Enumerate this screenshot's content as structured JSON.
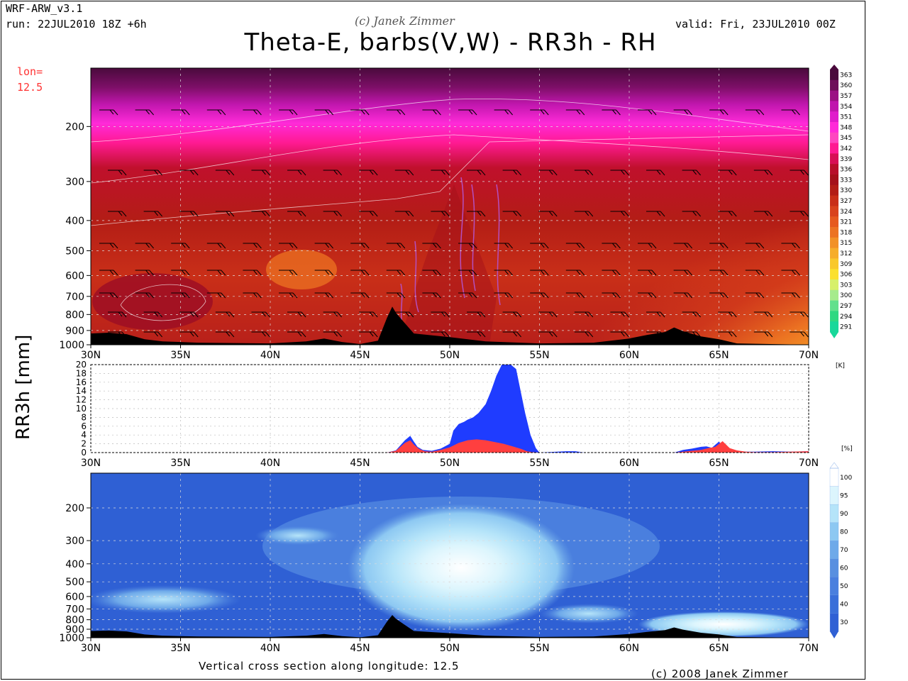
{
  "header": {
    "model": "WRF-ARW_v3.1",
    "run": "run: 22JUL2010 18Z +6h",
    "copyright_top": "(c) Janek Zimmer",
    "valid": "valid: Fri, 23JUL2010 00Z",
    "title": "Theta-E, barbs(V,W) - RR3h - RH",
    "lon_label": "lon=",
    "lon_value": "12.5"
  },
  "footer": {
    "caption": "Vertical cross section along longitude: 12.5",
    "copyright": "(c) 2008 Janek Zimmer"
  },
  "colors": {
    "rain_blue": "#1f3cff",
    "rain_red": "#ff3f3f",
    "rh_background": "#2f72d9",
    "terrain": "#000000"
  },
  "chart_data": [
    {
      "type": "heatmap",
      "name": "Theta-E",
      "x_ticks": [
        "30N",
        "35N",
        "40N",
        "45N",
        "50N",
        "55N",
        "60N",
        "65N",
        "70N"
      ],
      "y_ticks": [
        "200",
        "300",
        "400",
        "500",
        "600",
        "700",
        "800",
        "900",
        "1000"
      ],
      "xlim": [
        30,
        70
      ],
      "ylim": [
        1000,
        130
      ],
      "y_scale": "log",
      "grid": true,
      "colorbar": {
        "values": [
          "363",
          "360",
          "357",
          "354",
          "351",
          "348",
          "345",
          "342",
          "339",
          "336",
          "333",
          "330",
          "327",
          "324",
          "321",
          "318",
          "315",
          "312",
          "309",
          "306",
          "303",
          "300",
          "297",
          "294",
          "291"
        ],
        "colors": [
          "#4a0a3c",
          "#6e0e5a",
          "#9b1284",
          "#c016ad",
          "#e01ccb",
          "#ff2ad8",
          "#ff46c0",
          "#ff1a92",
          "#d80f55",
          "#b80f2a",
          "#a5101a",
          "#b31d16",
          "#c92f18",
          "#d9431c",
          "#e65a1e",
          "#ec7322",
          "#f29126",
          "#f6ad2a",
          "#f9c82c",
          "#fbe02f",
          "#d7f06a",
          "#a6eb8c",
          "#62e08c",
          "#2fd881",
          "#18d89a"
        ]
      },
      "unit": "[K]"
    },
    {
      "type": "area",
      "name": "RR3h",
      "ylabel": "RR3h [mm]",
      "x_ticks": [
        "30N",
        "35N",
        "40N",
        "45N",
        "50N",
        "55N",
        "60N",
        "65N",
        "70N"
      ],
      "y_ticks": [
        "20",
        "18",
        "16",
        "14",
        "12",
        "10",
        "8",
        "6",
        "4",
        "2",
        "0"
      ],
      "xlim": [
        30,
        70
      ],
      "ylim": [
        0,
        20
      ],
      "grid": true,
      "series": [
        {
          "x": [
            46.5,
            47.0,
            47.5,
            47.8,
            48.0,
            48.2,
            48.5,
            49.0,
            49.5,
            50.0,
            50.2,
            50.5,
            50.8,
            51.0,
            51.3,
            51.6,
            52.0,
            52.3,
            52.6,
            52.9,
            53.1,
            53.4,
            53.7,
            54.0,
            54.2,
            54.5,
            54.8,
            55.0,
            56.5,
            57.0,
            57.5,
            62.5,
            63.0,
            63.5,
            64.0,
            64.3,
            64.6,
            65.0,
            65.3,
            65.6,
            66.0,
            66.5,
            67.0,
            68.0,
            69.0,
            70.0
          ],
          "values": [
            0,
            0.5,
            2.8,
            3.8,
            2.5,
            1.3,
            0.6,
            0.4,
            0.9,
            2.0,
            5.0,
            6.5,
            7.0,
            7.5,
            8.0,
            9.0,
            11.0,
            14.0,
            17.5,
            20,
            20,
            20,
            19.0,
            13.0,
            9.0,
            4.0,
            1.0,
            0,
            0.3,
            0.3,
            0,
            0,
            0.6,
            0.9,
            1.3,
            1.4,
            1.1,
            2.5,
            1.0,
            0.7,
            0.4,
            0.2,
            0.2,
            0.3,
            0.2,
            0.3
          ]
        },
        {
          "x": [
            46.5,
            47.0,
            47.5,
            47.8,
            48.0,
            48.3,
            48.6,
            49.0,
            49.5,
            50.0,
            50.5,
            51.0,
            51.5,
            52.0,
            52.5,
            53.0,
            53.5,
            54.0,
            54.3,
            54.6,
            55.0,
            62.5,
            63.0,
            63.5,
            64.0,
            64.4,
            64.8,
            65.2,
            65.6,
            66.0,
            66.5,
            67.0,
            68.0,
            69.0,
            70.0
          ],
          "values": [
            0,
            0.4,
            2.2,
            2.8,
            1.8,
            0.8,
            0.3,
            0.2,
            0.6,
            1.2,
            2.2,
            2.8,
            3.0,
            2.8,
            2.4,
            2.0,
            1.4,
            0.8,
            0.3,
            0.1,
            0,
            0,
            0.2,
            0.4,
            0.6,
            1.0,
            1.3,
            2.6,
            1.0,
            0.5,
            0.2,
            0.1,
            0.1,
            0.2,
            0.3
          ]
        }
      ],
      "unit": "[K]"
    },
    {
      "type": "heatmap",
      "name": "RH",
      "x_ticks": [
        "30N",
        "35N",
        "40N",
        "45N",
        "50N",
        "55N",
        "60N",
        "65N",
        "70N"
      ],
      "y_ticks": [
        "200",
        "300",
        "400",
        "500",
        "600",
        "700",
        "800",
        "900",
        "1000"
      ],
      "xlim": [
        30,
        70
      ],
      "ylim": [
        1000,
        130
      ],
      "y_scale": "log",
      "grid": true,
      "colorbar": {
        "values": [
          "100",
          "95",
          "90",
          "80",
          "70",
          "60",
          "50",
          "40",
          "30"
        ],
        "colors": [
          "#ffffff",
          "#dcf5fd",
          "#b5e4f9",
          "#8dc8f2",
          "#6ea9e9",
          "#588fe0",
          "#4a7fde",
          "#3a6fd9",
          "#2f60d4"
        ]
      },
      "unit": "[%]"
    }
  ]
}
